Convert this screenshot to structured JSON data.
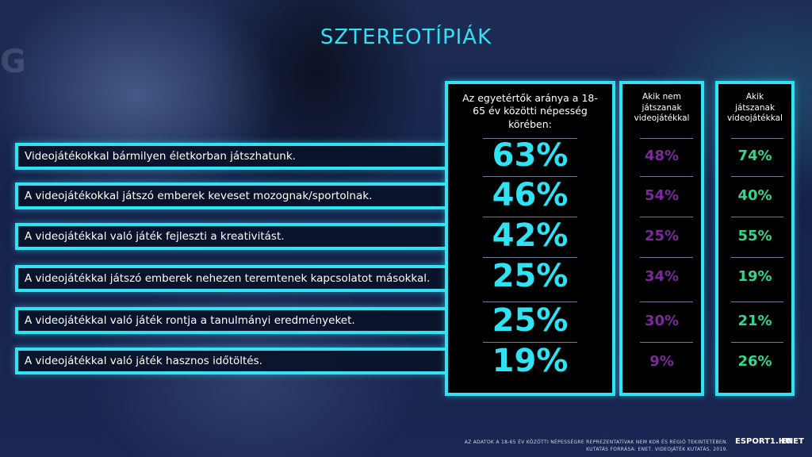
{
  "title": "SZTEREOTÍPIÁK",
  "background_logo": "G",
  "colors": {
    "accent": "#2fe3f5",
    "all_values": "#2fe3f5",
    "non_players": "#7a2a9e",
    "players": "#37d58a"
  },
  "columns": [
    {
      "key": "all",
      "header": "Az egyetértők aránya a 18-65 év közötti népesség körében:"
    },
    {
      "key": "non_players",
      "header": "Akik nem játszanak videojátékkal"
    },
    {
      "key": "players",
      "header": "Akik játszanak videojátékkal"
    }
  ],
  "chart_data": {
    "type": "table",
    "title": "SZTEREOTÍPIÁK",
    "rows": [
      {
        "statement": "Videojátékokkal bármilyen életkorban játszhatunk.",
        "all": "63%",
        "non_players": "48%",
        "players": "74%"
      },
      {
        "statement": "A videojátékokkal játszó emberek keveset mozognak/sportolnak.",
        "all": "46%",
        "non_players": "54%",
        "players": "40%"
      },
      {
        "statement": "A videojátékkal való játék fejleszti a kreativitást.",
        "all": "42%",
        "non_players": "25%",
        "players": "55%"
      },
      {
        "statement": "A videojátékkal játszó emberek nehezen teremtenek kapcsolatot másokkal.",
        "all": "25%",
        "non_players": "34%",
        "players": "19%"
      },
      {
        "statement": "A videojátékkal való játék rontja a tanulmányi eredményeket.",
        "all": "25%",
        "non_players": "30%",
        "players": "21%"
      },
      {
        "statement": "A videojátékkal való játék hasznos időtöltés.",
        "all": "19%",
        "non_players": "9%",
        "players": "26%"
      }
    ]
  },
  "footnote": {
    "line1": "AZ ADATOK A 18-65 ÉV KÖZÖTTI NÉPESSÉGRE REPREZENTATÍVAK NEM KOR ÉS RÉGIÓ TEKINTETÉBEN.",
    "line2": "KUTATÁS FORRÁSA: ENET, VIDEOJÁTÉK KUTATÁS, 2019."
  },
  "logos": {
    "esport": "ESPORT1.HU",
    "enet": "ENET"
  }
}
